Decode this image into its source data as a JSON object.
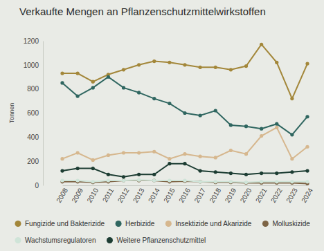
{
  "chart_data": {
    "type": "line",
    "title": "Verkaufte Mengen an Pflanzenschutzmittelwirkstoffen",
    "y_label": "Tonnen",
    "categories": [
      "2008",
      "2009",
      "2010",
      "2011",
      "2012",
      "2013",
      "2014",
      "2015",
      "2016",
      "2017",
      "2018",
      "2019",
      "2020",
      "2021",
      "2022",
      "2023",
      "2024"
    ],
    "ylim": [
      0,
      1200
    ],
    "yticks": [
      0,
      200,
      400,
      600,
      800,
      1000,
      1200
    ],
    "grid": false,
    "legend": "bottom",
    "marker": "circle",
    "series": [
      {
        "name": "Fungizide und Bakterizide",
        "color": "#a3873a",
        "values": [
          930,
          930,
          860,
          920,
          960,
          1000,
          1030,
          1020,
          1000,
          980,
          980,
          960,
          990,
          1170,
          1020,
          720,
          1010
        ]
      },
      {
        "name": "Herbizide",
        "color": "#2f6660",
        "values": [
          850,
          740,
          810,
          900,
          810,
          770,
          720,
          680,
          600,
          580,
          620,
          500,
          490,
          470,
          510,
          420,
          570
        ]
      },
      {
        "name": "Insektizide und Akarizide",
        "color": "#d6b78e",
        "values": [
          220,
          270,
          210,
          250,
          270,
          270,
          280,
          220,
          260,
          240,
          230,
          290,
          260,
          410,
          480,
          220,
          320
        ]
      },
      {
        "name": "Molluskizide",
        "color": "#7d6445",
        "values": [
          30,
          30,
          25,
          30,
          40,
          40,
          40,
          30,
          35,
          30,
          25,
          25,
          20,
          20,
          20,
          20,
          15
        ]
      },
      {
        "name": "Wachstumsregulatoren",
        "color": "#cfe4d8",
        "values": [
          40,
          40,
          30,
          40,
          40,
          45,
          40,
          40,
          40,
          30,
          30,
          30,
          25,
          30,
          30,
          30,
          30
        ]
      },
      {
        "name": "Weitere Pflanzenschutzmittel",
        "color": "#1d3d33",
        "values": [
          120,
          140,
          140,
          90,
          70,
          90,
          90,
          180,
          180,
          120,
          110,
          100,
          90,
          100,
          100,
          110,
          120
        ]
      }
    ]
  }
}
